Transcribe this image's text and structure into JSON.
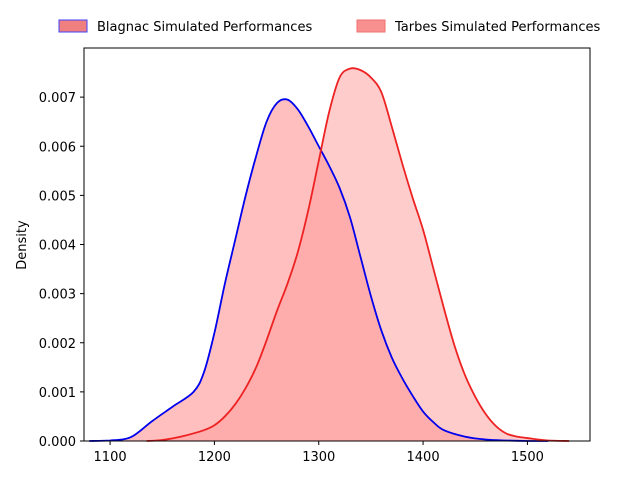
{
  "chart_data": {
    "type": "area",
    "title": "",
    "xlabel": "",
    "ylabel": "Density",
    "xlim": [
      1075,
      1560
    ],
    "ylim": [
      0,
      0.008
    ],
    "xticks": [
      1100,
      1200,
      1300,
      1400,
      1500
    ],
    "xtick_labels": [
      "1100",
      "1200",
      "1300",
      "1400",
      "1500"
    ],
    "yticks": [
      0,
      0.001,
      0.002,
      0.003,
      0.004,
      0.005,
      0.006,
      0.007
    ],
    "ytick_labels": [
      "0.000",
      "0.001",
      "0.002",
      "0.003",
      "0.004",
      "0.005",
      "0.006",
      "0.007"
    ],
    "grid": false,
    "legend_position": "top-center-outside",
    "legend": [
      {
        "label": "Blagnac Simulated Performances",
        "fill": "#f08080",
        "edge": "#4040ff"
      },
      {
        "label": "Tarbes Simulated Performances",
        "fill": "#f89090",
        "edge": "#f07070"
      }
    ],
    "series": [
      {
        "name": "Blagnac Simulated Performances",
        "line_color": "#0000ee",
        "fill_color": "#ff8080",
        "fill_opacity": 0.5,
        "x": [
          1080,
          1100,
          1120,
          1140,
          1160,
          1180,
          1190,
          1200,
          1210,
          1220,
          1230,
          1240,
          1250,
          1260,
          1270,
          1280,
          1290,
          1300,
          1310,
          1320,
          1330,
          1340,
          1350,
          1360,
          1370,
          1380,
          1390,
          1400,
          1410,
          1420,
          1440,
          1460,
          1480,
          1500,
          1520
        ],
        "y": [
          0.0,
          1e-05,
          8e-05,
          0.0004,
          0.0007,
          0.001,
          0.0014,
          0.0022,
          0.0032,
          0.0041,
          0.005,
          0.0058,
          0.0065,
          0.00688,
          0.00695,
          0.00675,
          0.0064,
          0.006,
          0.0056,
          0.00515,
          0.00455,
          0.00375,
          0.00295,
          0.00225,
          0.0017,
          0.00128,
          0.00092,
          0.0006,
          0.00038,
          0.00022,
          9e-05,
          3e-05,
          1e-05,
          0.0,
          0.0
        ]
      },
      {
        "name": "Tarbes Simulated Performances",
        "line_color": "#ee2222",
        "fill_color": "#ff9999",
        "fill_opacity": 0.5,
        "x": [
          1135,
          1150,
          1170,
          1190,
          1200,
          1210,
          1220,
          1230,
          1240,
          1250,
          1260,
          1270,
          1280,
          1290,
          1300,
          1310,
          1320,
          1330,
          1340,
          1350,
          1360,
          1370,
          1380,
          1390,
          1400,
          1410,
          1420,
          1430,
          1440,
          1450,
          1460,
          1470,
          1480,
          1490,
          1500,
          1520,
          1540
        ],
        "y": [
          0.0,
          2e-05,
          0.0001,
          0.00022,
          0.00032,
          0.0005,
          0.00075,
          0.00108,
          0.0015,
          0.00205,
          0.00265,
          0.0032,
          0.00385,
          0.0047,
          0.0057,
          0.0067,
          0.0074,
          0.00758,
          0.00755,
          0.0074,
          0.0071,
          0.0064,
          0.00565,
          0.00495,
          0.0043,
          0.0035,
          0.0027,
          0.00195,
          0.00135,
          0.0009,
          0.00055,
          0.0003,
          0.00015,
          9e-05,
          6e-05,
          1e-05,
          0.0
        ]
      }
    ]
  }
}
